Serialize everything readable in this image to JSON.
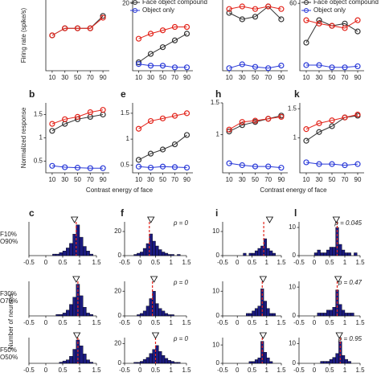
{
  "chart_data": [
    {
      "type": "line",
      "ylabel": "Firing rate (spike/s)",
      "x": [
        10,
        30,
        50,
        70,
        90
      ],
      "xlim": [
        0,
        100
      ],
      "xticks": [
        10,
        30,
        50,
        70,
        90
      ],
      "ylim": [
        0,
        20
      ],
      "series": [
        {
          "color": "#333333",
          "values": [
            10,
            12,
            12,
            12,
            15.5
          ]
        },
        {
          "color": "#e3241b",
          "values": [
            10,
            12,
            12,
            12,
            15
          ]
        }
      ]
    },
    {
      "type": "line",
      "x": [
        10,
        30,
        50,
        70,
        90
      ],
      "xlim": [
        0,
        100
      ],
      "xticks": [
        10,
        30,
        50,
        70,
        90
      ],
      "ylim": [
        0,
        21
      ],
      "yticks": [
        20
      ],
      "legend": "upper right",
      "series": [
        {
          "name": "Face object compound",
          "color": "#333333",
          "values": [
            2.5,
            5,
            7,
            9,
            11
          ]
        },
        {
          "color": "#e3241b",
          "values": [
            9.5,
            11,
            12,
            13,
            13
          ]
        },
        {
          "name": "Object only",
          "color": "#2a3ad8",
          "values": [
            2,
            1.5,
            1.5,
            1,
            1
          ]
        }
      ]
    },
    {
      "type": "line",
      "x": [
        10,
        30,
        50,
        70,
        90
      ],
      "xlim": [
        0,
        100
      ],
      "xticks": [
        10,
        30,
        50,
        70,
        90
      ],
      "ylim": [
        0,
        55
      ],
      "series": [
        {
          "color": "#333333",
          "values": [
            45,
            40,
            42,
            50,
            40
          ]
        },
        {
          "color": "#e3241b",
          "values": [
            48,
            50,
            48,
            50,
            48
          ]
        },
        {
          "color": "#2a3ad8",
          "values": [
            2,
            5,
            3,
            2,
            4
          ]
        }
      ]
    },
    {
      "type": "line",
      "x": [
        10,
        30,
        50,
        70,
        90
      ],
      "xlim": [
        0,
        100
      ],
      "xticks": [
        10,
        30,
        50,
        70,
        90
      ],
      "ylim": [
        0,
        63
      ],
      "yticks": [
        60
      ],
      "legend": "upper right",
      "series": [
        {
          "name": "Face object compound",
          "color": "#333333",
          "values": [
            25,
            45,
            40,
            42,
            35
          ]
        },
        {
          "color": "#e3241b",
          "values": [
            45,
            42,
            40,
            38,
            45
          ]
        },
        {
          "name": "Object only",
          "color": "#2a3ad8",
          "values": [
            5,
            5,
            3,
            3,
            4
          ]
        }
      ]
    },
    {
      "type": "line",
      "label": "b",
      "ylabel": "Normalized response",
      "xlabel": "Contrast energy of face",
      "x": [
        10,
        30,
        50,
        70,
        90
      ],
      "xlim": [
        0,
        100
      ],
      "xticks": [
        10,
        30,
        50,
        70,
        90
      ],
      "ylim": [
        0.25,
        1.75
      ],
      "yticks": [
        0.5,
        1,
        1.5
      ],
      "series": [
        {
          "color": "#333333",
          "values": [
            1.15,
            1.3,
            1.4,
            1.45,
            1.5
          ]
        },
        {
          "color": "#e3241b",
          "values": [
            1.3,
            1.4,
            1.45,
            1.55,
            1.6
          ]
        },
        {
          "color": "#2a3ad8",
          "values": [
            0.4,
            0.37,
            0.36,
            0.35,
            0.35
          ]
        }
      ]
    },
    {
      "type": "line",
      "label": "e",
      "x": [
        10,
        30,
        50,
        70,
        90
      ],
      "xlim": [
        0,
        100
      ],
      "xticks": [
        10,
        30,
        50,
        70,
        90
      ],
      "ylim": [
        0.35,
        1.7
      ],
      "yticks": [
        0.5,
        1,
        1.5
      ],
      "series": [
        {
          "color": "#333333",
          "values": [
            0.6,
            0.72,
            0.8,
            0.9,
            1.08
          ]
        },
        {
          "color": "#e3241b",
          "values": [
            1.2,
            1.35,
            1.4,
            1.45,
            1.5
          ]
        },
        {
          "color": "#2a3ad8",
          "values": [
            0.47,
            0.45,
            0.47,
            0.46,
            0.45
          ]
        }
      ]
    },
    {
      "type": "line",
      "label": "h",
      "xlabel": "Contrast energy of face",
      "x": [
        10,
        30,
        50,
        70,
        90
      ],
      "xlim": [
        0,
        100
      ],
      "xticks": [
        10,
        30,
        50,
        70,
        90
      ],
      "ylim": [
        0.4,
        1.5
      ],
      "yticks": [
        1,
        1.5
      ],
      "series": [
        {
          "color": "#333333",
          "values": [
            1.05,
            1.15,
            1.2,
            1.25,
            1.3
          ]
        },
        {
          "color": "#e3241b",
          "values": [
            1.08,
            1.2,
            1.22,
            1.25,
            1.28
          ]
        },
        {
          "color": "#2a3ad8",
          "values": [
            0.55,
            0.52,
            0.5,
            0.5,
            0.48
          ]
        }
      ]
    },
    {
      "type": "line",
      "label": "k",
      "x": [
        10,
        30,
        50,
        70,
        90
      ],
      "xlim": [
        0,
        100
      ],
      "xticks": [
        10,
        30,
        50,
        70,
        90
      ],
      "ylim": [
        0.4,
        1.6
      ],
      "yticks": [
        1,
        1.5
      ],
      "series": [
        {
          "color": "#333333",
          "values": [
            0.95,
            1.1,
            1.2,
            1.35,
            1.38
          ]
        },
        {
          "color": "#e3241b",
          "values": [
            1.15,
            1.25,
            1.3,
            1.35,
            1.4
          ]
        },
        {
          "color": "#2a3ad8",
          "values": [
            0.58,
            0.55,
            0.55,
            0.53,
            0.55
          ]
        }
      ]
    },
    {
      "type": "histogram",
      "label": "c",
      "row_label": [
        "F10%",
        "O90%"
      ],
      "bins": [
        -0.5,
        -0.4,
        -0.3,
        -0.2,
        -0.1,
        0,
        0.1,
        0.2,
        0.3,
        0.4,
        0.5,
        0.6,
        0.7,
        0.8,
        0.9,
        1,
        1.1,
        1.2,
        1.3,
        1.4,
        1.5
      ],
      "counts": [
        0,
        0,
        0,
        0,
        0,
        0,
        0,
        1,
        1,
        2,
        3,
        5,
        8,
        14,
        20,
        12,
        6,
        3,
        1,
        0
      ],
      "xlim": [
        -0.5,
        1.5
      ],
      "xticks": [
        -0.5,
        0,
        0.5,
        1,
        1.5
      ],
      "ylim": [
        0,
        22
      ],
      "median": 0.9,
      "mean": 0.85,
      "color": "#1b1b80"
    },
    {
      "type": "histogram",
      "label": "f",
      "annotation": "p = 0",
      "bins": [
        -0.5,
        -0.4,
        -0.3,
        -0.2,
        -0.1,
        0,
        0.1,
        0.2,
        0.3,
        0.4,
        0.5,
        0.6,
        0.7,
        0.8,
        0.9,
        1,
        1.1,
        1.2,
        1.3,
        1.4,
        1.5
      ],
      "counts": [
        0,
        0,
        0,
        1,
        2,
        3,
        6,
        10,
        18,
        12,
        8,
        5,
        3,
        2,
        1,
        1,
        0,
        1,
        0,
        0
      ],
      "xlim": [
        -0.5,
        1.5
      ],
      "xticks": [
        -0.5,
        0,
        0.5,
        1,
        1.5
      ],
      "ylim": [
        0,
        28
      ],
      "yticks": [
        0,
        20
      ],
      "median": 0.3,
      "mean": 0.35,
      "color": "#1b1b80"
    },
    {
      "type": "histogram",
      "label": "i",
      "bins": [
        -0.5,
        -0.4,
        -0.3,
        -0.2,
        -0.1,
        0,
        0.1,
        0.2,
        0.3,
        0.4,
        0.5,
        0.6,
        0.7,
        0.8,
        0.9,
        1,
        1.1,
        1.2,
        1.3,
        1.4,
        1.5
      ],
      "counts": [
        0,
        0,
        0,
        0,
        0,
        0,
        0,
        1,
        0,
        1,
        1,
        2,
        3,
        4,
        7,
        3,
        2,
        1,
        0,
        0
      ],
      "xlim": [
        -0.5,
        1.5
      ],
      "xticks": [
        -0.5,
        0,
        0.5,
        1,
        1.5
      ],
      "ylim": [
        0,
        14
      ],
      "yticks": [
        0,
        10
      ],
      "median": 0.9,
      "mean": 1.1,
      "color": "#1b1b80"
    },
    {
      "type": "histogram",
      "label": "l",
      "annotation": "p = 0.045",
      "bins": [
        -0.5,
        -0.4,
        -0.3,
        -0.2,
        -0.1,
        0,
        0.1,
        0.2,
        0.3,
        0.4,
        0.5,
        0.6,
        0.7,
        0.8,
        0.9,
        1,
        1.1,
        1.2,
        1.3,
        1.4,
        1.5
      ],
      "counts": [
        0,
        0,
        0,
        0,
        0,
        1,
        2,
        1,
        1,
        2,
        3,
        3,
        10,
        4,
        2,
        1,
        1,
        0,
        1,
        0
      ],
      "xlim": [
        -0.5,
        1.5
      ],
      "xticks": [
        -0.5,
        0,
        0.5,
        1,
        1.5
      ],
      "ylim": [
        0,
        12
      ],
      "yticks": [
        0,
        10
      ],
      "median": 0.75,
      "mean": 0.72,
      "color": "#1b1b80"
    },
    {
      "type": "histogram",
      "row_label": [
        "F30%",
        "O70%"
      ],
      "bins": [
        -0.5,
        -0.4,
        -0.3,
        -0.2,
        -0.1,
        0,
        0.1,
        0.2,
        0.3,
        0.4,
        0.5,
        0.6,
        0.7,
        0.8,
        0.9,
        1,
        1.1,
        1.2,
        1.3,
        1.4,
        1.5
      ],
      "counts": [
        0,
        0,
        0,
        0,
        0,
        0,
        0,
        0,
        1,
        1,
        2,
        4,
        8,
        13,
        22,
        14,
        6,
        2,
        1,
        0
      ],
      "xlim": [
        -0.5,
        1.5
      ],
      "xticks": [
        -0.5,
        0,
        0.5,
        1,
        1.5
      ],
      "ylim": [
        0,
        24
      ],
      "median": 0.95,
      "mean": 0.9,
      "color": "#1b1b80"
    },
    {
      "type": "histogram",
      "annotation": "p = 0",
      "bins": [
        -0.5,
        -0.4,
        -0.3,
        -0.2,
        -0.1,
        0,
        0.1,
        0.2,
        0.3,
        0.4,
        0.5,
        0.6,
        0.7,
        0.8,
        0.9,
        1,
        1.1,
        1.2,
        1.3,
        1.4,
        1.5
      ],
      "counts": [
        0,
        0,
        0,
        0,
        1,
        2,
        4,
        8,
        14,
        20,
        10,
        6,
        4,
        2,
        1,
        1,
        0,
        0,
        0,
        0
      ],
      "xlim": [
        -0.5,
        1.5
      ],
      "xticks": [
        -0.5,
        0,
        0.5,
        1,
        1.5
      ],
      "ylim": [
        0,
        28
      ],
      "yticks": [
        0,
        20
      ],
      "median": 0.4,
      "mean": 0.45,
      "color": "#1b1b80"
    },
    {
      "type": "histogram",
      "bins": [
        -0.5,
        -0.4,
        -0.3,
        -0.2,
        -0.1,
        0,
        0.1,
        0.2,
        0.3,
        0.4,
        0.5,
        0.6,
        0.7,
        0.8,
        0.9,
        1,
        1.1,
        1.2,
        1.3,
        1.4,
        1.5
      ],
      "counts": [
        0,
        0,
        0,
        0,
        0,
        0,
        0,
        0,
        1,
        1,
        2,
        3,
        4,
        11,
        6,
        3,
        1,
        1,
        0,
        0
      ],
      "xlim": [
        -0.5,
        1.5
      ],
      "xticks": [
        -0.5,
        0,
        0.5,
        1,
        1.5
      ],
      "ylim": [
        0,
        14
      ],
      "yticks": [
        0,
        10
      ],
      "median": 0.85,
      "mean": 0.88,
      "color": "#1b1b80"
    },
    {
      "type": "histogram",
      "annotation": "p = 0.47",
      "bins": [
        -0.5,
        -0.4,
        -0.3,
        -0.2,
        -0.1,
        0,
        0.1,
        0.2,
        0.3,
        0.4,
        0.5,
        0.6,
        0.7,
        0.8,
        0.9,
        1,
        1.1,
        1.2,
        1.3,
        1.4,
        1.5
      ],
      "counts": [
        0,
        0,
        0,
        0,
        0,
        0,
        1,
        1,
        1,
        2,
        2,
        3,
        9,
        4,
        2,
        1,
        1,
        1,
        0,
        0
      ],
      "xlim": [
        -0.5,
        1.5
      ],
      "xticks": [
        -0.5,
        0,
        0.5,
        1,
        1.5
      ],
      "ylim": [
        0,
        12
      ],
      "yticks": [
        0,
        10
      ],
      "median": 0.75,
      "mean": 0.78,
      "color": "#1b1b80"
    },
    {
      "type": "histogram",
      "row_label": [
        "F50%",
        "O50%"
      ],
      "ylabel": "Number of neurons",
      "bins": [
        -0.5,
        -0.4,
        -0.3,
        -0.2,
        -0.1,
        0,
        0.1,
        0.2,
        0.3,
        0.4,
        0.5,
        0.6,
        0.7,
        0.8,
        0.9,
        1,
        1.1,
        1.2,
        1.3,
        1.4,
        1.5
      ],
      "counts": [
        0,
        0,
        0,
        0,
        0,
        0,
        0,
        0,
        0,
        1,
        2,
        3,
        6,
        12,
        20,
        15,
        8,
        3,
        1,
        0
      ],
      "xlim": [
        -0.5,
        1.5
      ],
      "xticks": [
        -0.5,
        0,
        0.5,
        1,
        1.5
      ],
      "ylim": [
        0,
        22
      ],
      "median": 0.95,
      "mean": 0.92,
      "color": "#1b1b80"
    },
    {
      "type": "histogram",
      "annotation": "p = 0",
      "bins": [
        -0.5,
        -0.4,
        -0.3,
        -0.2,
        -0.1,
        0,
        0.1,
        0.2,
        0.3,
        0.4,
        0.5,
        0.6,
        0.7,
        0.8,
        0.9,
        1,
        1.1,
        1.2,
        1.3,
        1.4,
        1.5
      ],
      "counts": [
        0,
        0,
        0,
        1,
        1,
        2,
        4,
        6,
        10,
        14,
        18,
        12,
        8,
        5,
        3,
        2,
        1,
        1,
        0,
        0
      ],
      "xlim": [
        -0.5,
        1.5
      ],
      "xticks": [
        -0.5,
        0,
        0.5,
        1,
        1.5
      ],
      "ylim": [
        0,
        26
      ],
      "yticks": [
        0,
        20
      ],
      "median": 0.5,
      "mean": 0.5,
      "color": "#1b1b80"
    },
    {
      "type": "histogram",
      "bins": [
        -0.5,
        -0.4,
        -0.3,
        -0.2,
        -0.1,
        0,
        0.1,
        0.2,
        0.3,
        0.4,
        0.5,
        0.6,
        0.7,
        0.8,
        0.9,
        1,
        1.1,
        1.2,
        1.3,
        1.4,
        1.5
      ],
      "counts": [
        0,
        0,
        0,
        0,
        0,
        0,
        0,
        0,
        0,
        1,
        1,
        2,
        3,
        12,
        6,
        3,
        1,
        0,
        0,
        0
      ],
      "xlim": [
        -0.5,
        1.5
      ],
      "xticks": [
        -0.5,
        0,
        0.5,
        1,
        1.5
      ],
      "ylim": [
        0,
        14
      ],
      "yticks": [
        0,
        10
      ],
      "median": 0.85,
      "mean": 0.88,
      "color": "#1b1b80"
    },
    {
      "type": "histogram",
      "annotation": "p = 0.95",
      "bins": [
        -0.5,
        -0.4,
        -0.3,
        -0.2,
        -0.1,
        0,
        0.1,
        0.2,
        0.3,
        0.4,
        0.5,
        0.6,
        0.7,
        0.8,
        0.9,
        1,
        1.1,
        1.2,
        1.3,
        1.4,
        1.5
      ],
      "counts": [
        0,
        0,
        0,
        0,
        0,
        0,
        0,
        1,
        1,
        1,
        2,
        3,
        5,
        11,
        4,
        2,
        1,
        0,
        0,
        0
      ],
      "xlim": [
        -0.5,
        1.5
      ],
      "xticks": [
        -0.5,
        0,
        0.5,
        1,
        1.5
      ],
      "ylim": [
        0,
        13
      ],
      "yticks": [
        0,
        10
      ],
      "median": 0.85,
      "mean": 0.82,
      "color": "#1b1b80"
    }
  ]
}
